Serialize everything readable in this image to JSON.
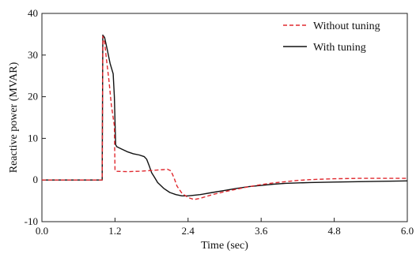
{
  "chart_data": {
    "type": "line",
    "xlabel": "Time (sec)",
    "ylabel": "Reactive power (MVAR)",
    "xlim": [
      0,
      6
    ],
    "ylim": [
      -10,
      40
    ],
    "xticks": [
      0.0,
      1.2,
      2.4,
      3.6,
      4.8,
      6.0
    ],
    "xtick_labels": [
      "0.0",
      "1.2",
      "2.4",
      "3.6",
      "4.8",
      "6.0"
    ],
    "yticks": [
      -10,
      0,
      10,
      20,
      30,
      40
    ],
    "ytick_labels": [
      "-10",
      "0",
      "10",
      "20",
      "30",
      "40"
    ],
    "grid": false,
    "legend": "top-right",
    "series": [
      {
        "name": "Without tuning",
        "color": "#e0282e",
        "dash": "dashed",
        "points": [
          [
            0.0,
            0.0
          ],
          [
            0.98,
            0.0
          ],
          [
            0.99,
            0.0
          ],
          [
            1.0,
            34.5
          ],
          [
            1.03,
            33.0
          ],
          [
            1.06,
            29.0
          ],
          [
            1.1,
            24.0
          ],
          [
            1.14,
            18.0
          ],
          [
            1.19,
            13.0
          ],
          [
            1.2,
            2.5
          ],
          [
            1.21,
            2.1
          ],
          [
            1.4,
            2.0
          ],
          [
            1.6,
            2.1
          ],
          [
            1.8,
            2.3
          ],
          [
            2.0,
            2.5
          ],
          [
            2.06,
            2.6
          ],
          [
            2.12,
            2.2
          ],
          [
            2.17,
            0.5
          ],
          [
            2.22,
            -1.5
          ],
          [
            2.3,
            -3.2
          ],
          [
            2.4,
            -4.2
          ],
          [
            2.5,
            -4.7
          ],
          [
            2.6,
            -4.4
          ],
          [
            2.8,
            -3.5
          ],
          [
            3.0,
            -2.8
          ],
          [
            3.2,
            -2.2
          ],
          [
            3.4,
            -1.6
          ],
          [
            3.6,
            -1.1
          ],
          [
            3.8,
            -0.7
          ],
          [
            4.0,
            -0.4
          ],
          [
            4.2,
            -0.1
          ],
          [
            4.4,
            0.1
          ],
          [
            4.8,
            0.3
          ],
          [
            5.2,
            0.4
          ],
          [
            5.6,
            0.4
          ],
          [
            6.0,
            0.4
          ]
        ]
      },
      {
        "name": "With tuning",
        "color": "#111111",
        "dash": "solid",
        "points": [
          [
            0.0,
            0.0
          ],
          [
            0.99,
            0.0
          ],
          [
            1.0,
            34.8
          ],
          [
            1.03,
            34.2
          ],
          [
            1.07,
            31.5
          ],
          [
            1.12,
            28.0
          ],
          [
            1.17,
            25.5
          ],
          [
            1.19,
            20.0
          ],
          [
            1.21,
            8.5
          ],
          [
            1.23,
            8.0
          ],
          [
            1.3,
            7.5
          ],
          [
            1.4,
            6.8
          ],
          [
            1.5,
            6.3
          ],
          [
            1.6,
            6.0
          ],
          [
            1.68,
            5.6
          ],
          [
            1.72,
            5.0
          ],
          [
            1.76,
            3.5
          ],
          [
            1.8,
            1.8
          ],
          [
            1.85,
            0.6
          ],
          [
            1.9,
            -0.6
          ],
          [
            2.0,
            -2.0
          ],
          [
            2.1,
            -3.0
          ],
          [
            2.2,
            -3.5
          ],
          [
            2.3,
            -3.8
          ],
          [
            2.4,
            -3.8
          ],
          [
            2.6,
            -3.5
          ],
          [
            2.8,
            -3.0
          ],
          [
            3.0,
            -2.5
          ],
          [
            3.2,
            -2.0
          ],
          [
            3.4,
            -1.6
          ],
          [
            3.6,
            -1.3
          ],
          [
            3.8,
            -1.0
          ],
          [
            4.0,
            -0.8
          ],
          [
            4.4,
            -0.6
          ],
          [
            4.8,
            -0.5
          ],
          [
            5.2,
            -0.4
          ],
          [
            5.6,
            -0.3
          ],
          [
            6.0,
            -0.2
          ]
        ]
      }
    ]
  }
}
